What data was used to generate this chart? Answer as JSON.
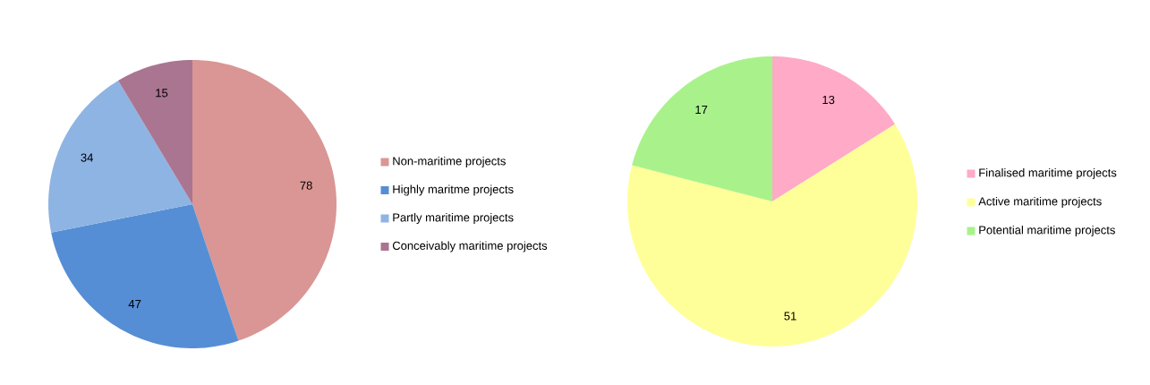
{
  "chart_data": [
    {
      "type": "pie",
      "categories": [
        "Non-maritime projects",
        "Highly maritme projects",
        "Partly maritime projects",
        "Conceivably maritime projects"
      ],
      "values": [
        78,
        47,
        34,
        15
      ],
      "colors": [
        "#d99694",
        "#558ed5",
        "#8eb4e3",
        "#aa7590"
      ],
      "data_labels": true,
      "legend": "right"
    },
    {
      "type": "pie",
      "categories": [
        "Finalised maritime projects",
        "Active maritime projects",
        "Potential maritime projects"
      ],
      "values": [
        13,
        51,
        17
      ],
      "colors": [
        "#ffaac6",
        "#ffff99",
        "#a9f28b"
      ],
      "data_labels": true,
      "legend": "right"
    }
  ]
}
